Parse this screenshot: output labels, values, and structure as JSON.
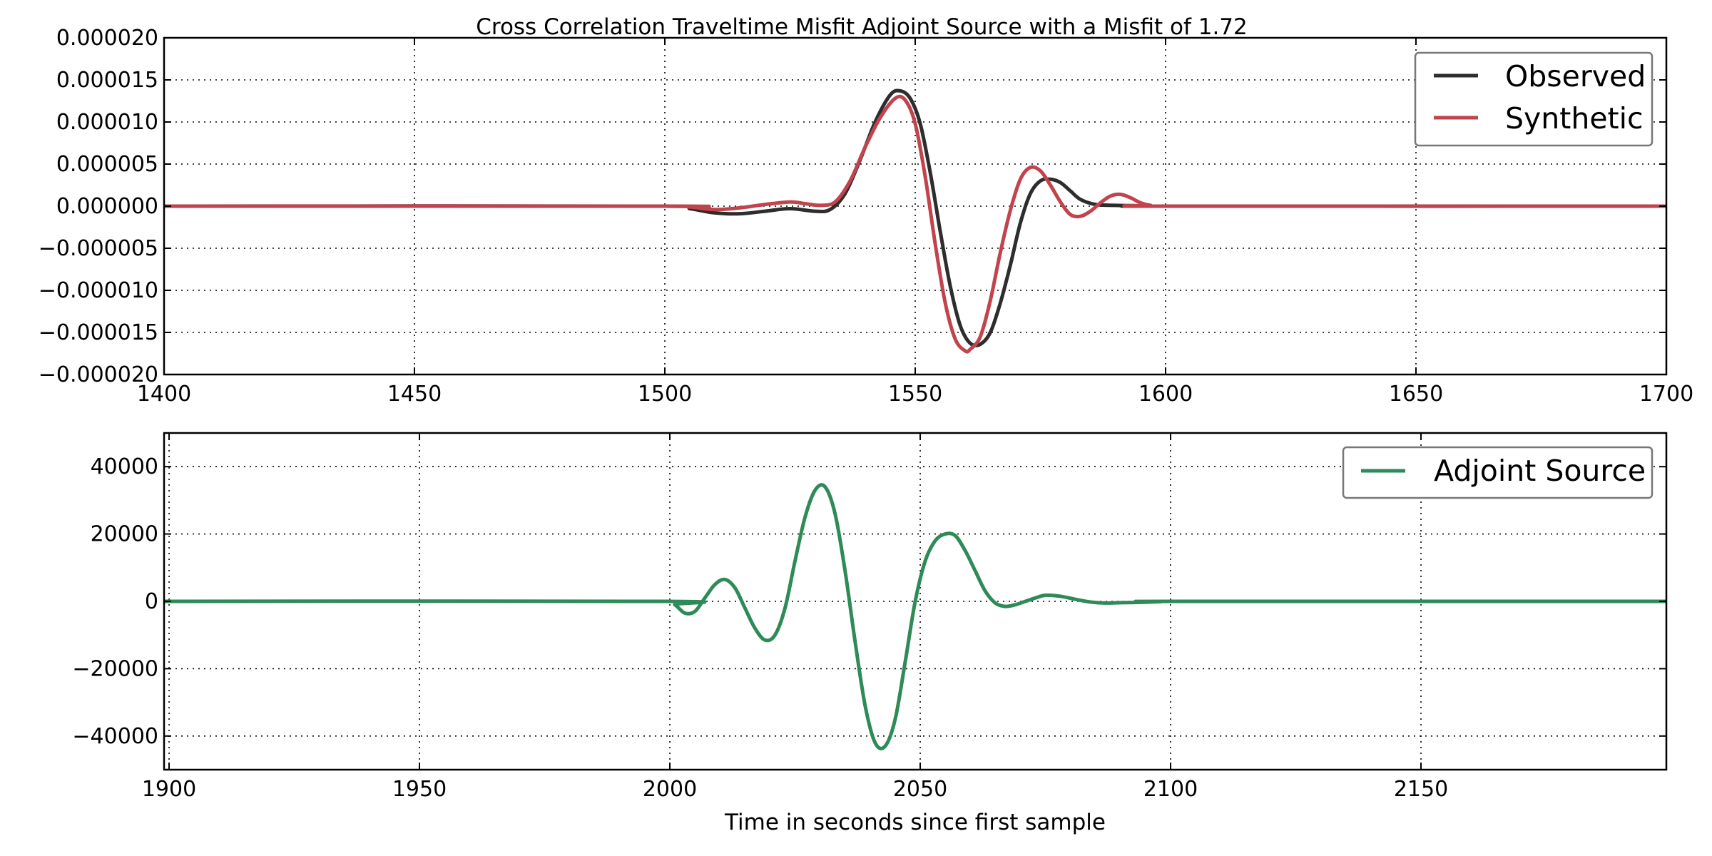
{
  "chart_data": [
    {
      "type": "line",
      "title": "Cross Correlation Traveltime Misfit Adjoint Source with a Misfit of 1.72",
      "xlabel": "",
      "ylabel": "",
      "xlim": [
        1400,
        1700
      ],
      "ylim": [
        -2e-05,
        2e-05
      ],
      "xticks": [
        1400,
        1450,
        1500,
        1550,
        1600,
        1650,
        1700
      ],
      "xtick_labels": [
        "1400",
        "1450",
        "1500",
        "1550",
        "1600",
        "1650",
        "1700"
      ],
      "yticks": [
        2e-05,
        1.5e-05,
        1e-05,
        5e-06,
        0,
        -5e-06,
        -1e-05,
        -1.5e-05,
        -2e-05
      ],
      "ytick_labels": [
        "0.000020",
        "0.000015",
        "0.000010",
        "0.000005",
        "0.000000",
        "−0.000005",
        "−0.000010",
        "−0.000015",
        "−0.000020"
      ],
      "grid": true,
      "legend": "top-right",
      "series": [
        {
          "name": "Observed",
          "color": "#2d2d2d",
          "x": [
            1400,
            1500,
            1505,
            1510,
            1515,
            1520,
            1525,
            1530,
            1533,
            1536,
            1539,
            1542,
            1545,
            1547,
            1549,
            1551,
            1553,
            1555,
            1557,
            1559,
            1561,
            1563,
            1565,
            1567,
            1569,
            1571,
            1573,
            1575,
            1577,
            1579,
            1581,
            1583,
            1586,
            1590,
            1595,
            1600,
            1700
          ],
          "y": [
            0,
            0,
            -3e-07,
            -8e-07,
            -9e-07,
            -6e-07,
            -3e-07,
            -6e-07,
            -4e-07,
            1.5e-06,
            5.5e-06,
            1e-05,
            1.32e-05,
            1.37e-05,
            1.28e-05,
            9.8e-06,
            4e-06,
            -3e-06,
            -9.5e-06,
            -1.42e-05,
            -1.63e-05,
            -1.64e-05,
            -1.5e-05,
            -1.15e-05,
            -7e-06,
            -2e-06,
            1.5e-06,
            3e-06,
            3.2e-06,
            2.8e-06,
            1.8e-06,
            8e-07,
            2e-07,
            1e-07,
            5e-08,
            0,
            0
          ]
        },
        {
          "name": "Synthetic",
          "color": "#c1444d",
          "x": [
            1400,
            1500,
            1505,
            1510,
            1515,
            1520,
            1525,
            1528,
            1531,
            1534,
            1537,
            1540,
            1543,
            1546,
            1548,
            1550,
            1552,
            1554,
            1556,
            1558,
            1560,
            1561,
            1563,
            1565,
            1567,
            1569,
            1571,
            1573,
            1575,
            1577,
            1579,
            1581,
            1583,
            1585,
            1587,
            1589,
            1591,
            1593,
            1595,
            1597,
            1600,
            1700
          ],
          "y": [
            0,
            0,
            -1e-07,
            -4e-07,
            -2e-07,
            2e-07,
            5e-07,
            3e-07,
            1e-07,
            5e-07,
            3e-06,
            7e-06,
            1.05e-05,
            1.28e-05,
            1.26e-05,
            9.8e-06,
            3.5e-06,
            -4.5e-06,
            -1.15e-05,
            -1.58e-05,
            -1.72e-05,
            -1.7e-05,
            -1.55e-05,
            -1.12e-05,
            -5.5e-06,
            -5e-07,
            3.2e-06,
            4.6e-06,
            4.2e-06,
            2.5e-06,
            5e-07,
            -1e-06,
            -1.2e-06,
            -6e-07,
            4e-07,
            1.2e-06,
            1.4e-06,
            1e-06,
            4e-07,
            1e-07,
            0,
            0
          ]
        }
      ]
    },
    {
      "type": "line",
      "title": "",
      "xlabel": "Time in seconds since first sample",
      "ylabel": "",
      "xlim": [
        1899,
        2199
      ],
      "ylim": [
        -50000,
        50000
      ],
      "xticks": [
        1900,
        1950,
        2000,
        2050,
        2100,
        2150
      ],
      "xtick_labels": [
        "1900",
        "1950",
        "2000",
        "2050",
        "2100",
        "2150"
      ],
      "yticks": [
        40000,
        20000,
        0,
        -20000,
        -40000
      ],
      "ytick_labels": [
        "40000",
        "20000",
        "0",
        "−20000",
        "−40000"
      ],
      "grid": true,
      "legend": "top-right",
      "series": [
        {
          "name": "Adjoint Source",
          "color": "#2e8b57",
          "x": [
            1899,
            1999,
            2001,
            2003,
            2005,
            2007,
            2009,
            2011,
            2013,
            2015,
            2017,
            2019,
            2021,
            2023,
            2025,
            2027,
            2029,
            2031,
            2033,
            2035,
            2037,
            2039,
            2041,
            2043,
            2045,
            2047,
            2049,
            2051,
            2053,
            2055,
            2057,
            2059,
            2061,
            2063,
            2065,
            2067,
            2069,
            2071,
            2073,
            2075,
            2078,
            2081,
            2084,
            2087,
            2090,
            2094,
            2098,
            2101,
            2199
          ],
          "y": [
            0,
            0,
            -1000,
            -3500,
            -3000,
            1000,
            5000,
            6500,
            4000,
            -2000,
            -8000,
            -11500,
            -10000,
            -2000,
            12000,
            25000,
            33000,
            34000,
            26000,
            9000,
            -12000,
            -31000,
            -42000,
            -43000,
            -35000,
            -18000,
            0,
            12000,
            18000,
            20000,
            19500,
            15000,
            9000,
            3000,
            -500,
            -1500,
            -1000,
            0,
            1000,
            1800,
            1500,
            600,
            -200,
            -500,
            -400,
            -300,
            -100,
            0,
            0
          ]
        }
      ]
    }
  ]
}
